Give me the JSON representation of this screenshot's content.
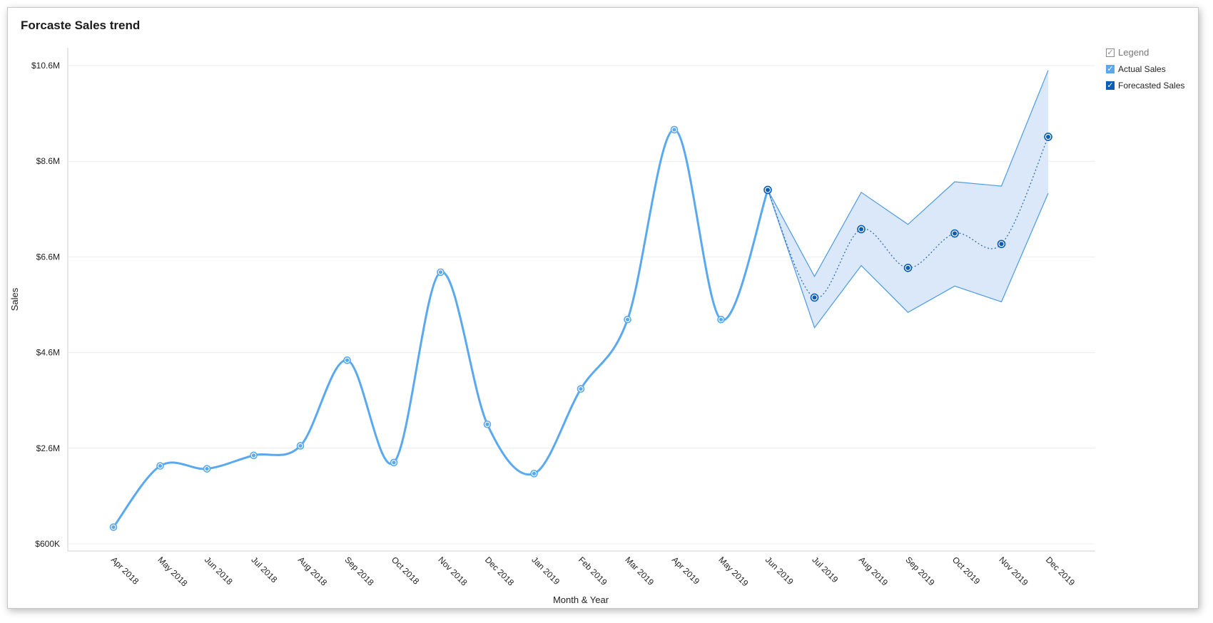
{
  "title": "Forcaste Sales trend",
  "legend": {
    "header": "Legend",
    "items": [
      {
        "label": "Actual Sales",
        "color": "#5aa9f0"
      },
      {
        "label": "Forecasted Sales",
        "color": "#0b5cb5"
      }
    ]
  },
  "chart_data": {
    "type": "line",
    "title": "Forcaste Sales trend",
    "xlabel": "Month & Year",
    "ylabel": "Sales",
    "ylim": [
      0.6,
      10.6
    ],
    "yunit": "millions USD",
    "yticks": [
      0.6,
      2.6,
      4.6,
      6.6,
      8.6,
      10.6
    ],
    "ytick_labels": [
      "$600K",
      "$2.6M",
      "$4.6M",
      "$6.6M",
      "$8.6M",
      "$10.6M"
    ],
    "grid": true,
    "legend_position": "top-right",
    "categories": [
      "Apr 2018",
      "May 2018",
      "Jun 2018",
      "Jul 2018",
      "Aug 2018",
      "Sep 2018",
      "Oct 2018",
      "Nov 2018",
      "Dec 2018",
      "Jan 2019",
      "Feb 2019",
      "Mar 2019",
      "Apr 2019",
      "May 2019",
      "Jun 2019",
      "Jul 2019",
      "Aug 2019",
      "Sep 2019",
      "Oct 2019",
      "Nov 2019",
      "Dec 2019"
    ],
    "series": [
      {
        "name": "Actual Sales",
        "color": "#5aa9f0",
        "style": "solid",
        "values": [
          0.95,
          2.23,
          2.17,
          2.45,
          2.65,
          4.44,
          2.3,
          6.28,
          3.1,
          2.07,
          3.84,
          5.29,
          9.26,
          5.29,
          8.0,
          null,
          null,
          null,
          null,
          null,
          null
        ]
      },
      {
        "name": "Forecasted Sales",
        "color": "#0b5cb5",
        "style": "dotted",
        "values": [
          null,
          null,
          null,
          null,
          null,
          null,
          null,
          null,
          null,
          null,
          null,
          null,
          null,
          null,
          8.0,
          5.75,
          7.18,
          6.37,
          7.09,
          6.87,
          9.11
        ]
      }
    ],
    "confidence_band": {
      "x_from": "Jun 2019",
      "x_to": "Dec 2019",
      "upper": [
        8.0,
        6.19,
        7.95,
        7.28,
        8.17,
        8.08,
        10.5
      ],
      "lower": [
        8.0,
        5.12,
        6.42,
        5.44,
        5.99,
        5.66,
        7.93
      ]
    }
  }
}
